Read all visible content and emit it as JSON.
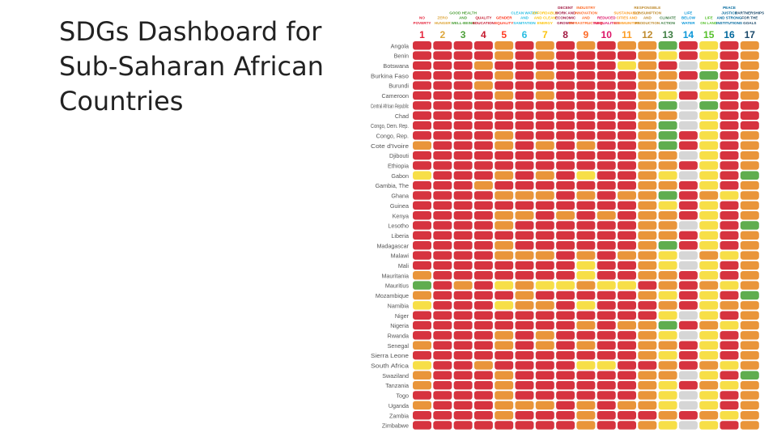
{
  "slide": {
    "title": "SDGs Dashboard for Sub-Saharan African Countries"
  },
  "palette": {
    "red": "#d6333f",
    "orange": "#e9953a",
    "yellow": "#f7df47",
    "green": "#5fad4f",
    "grey": "#d6d6d6"
  },
  "chart_data": {
    "type": "heatmap",
    "goals": [
      {
        "number": "1",
        "label": [
          "NO",
          "POVERTY"
        ],
        "color": "#e5243b"
      },
      {
        "number": "2",
        "label": [
          "ZERO",
          "HUNGER"
        ],
        "color": "#dda63a"
      },
      {
        "number": "3",
        "label": [
          "GOOD HEALTH",
          "AND",
          "WELL-BEING"
        ],
        "color": "#4c9f38"
      },
      {
        "number": "4",
        "label": [
          "QUALITY",
          "EDUCATION"
        ],
        "color": "#c5192d"
      },
      {
        "number": "5",
        "label": [
          "GENDER",
          "EQUALITY"
        ],
        "color": "#ff3a21"
      },
      {
        "number": "6",
        "label": [
          "CLEAN WATER",
          "AND",
          "SANITATION"
        ],
        "color": "#26bde2"
      },
      {
        "number": "7",
        "label": [
          "AFFORDABLE",
          "AND CLEAN",
          "ENERGY"
        ],
        "color": "#fcc30b"
      },
      {
        "number": "8",
        "label": [
          "DECENT",
          "WORK AND",
          "ECONOMIC",
          "GROWTH"
        ],
        "color": "#a21942"
      },
      {
        "number": "9",
        "label": [
          "INDUSTRY",
          "INNOVATION",
          "AND",
          "INFRASTRUCTURE"
        ],
        "color": "#fd6925"
      },
      {
        "number": "10",
        "label": [
          "REDUCED",
          "INEQUALITIES"
        ],
        "color": "#dd1367"
      },
      {
        "number": "11",
        "label": [
          "SUSTAINABLE",
          "CITIES AND",
          "COMMUNITIES"
        ],
        "color": "#fd9d24"
      },
      {
        "number": "12",
        "label": [
          "RESPONSIBLE",
          "CONSUMPTION",
          "AND",
          "PRODUCTION"
        ],
        "color": "#bf8b2e"
      },
      {
        "number": "13",
        "label": [
          "CLIMATE",
          "ACTION"
        ],
        "color": "#3f7e44"
      },
      {
        "number": "14",
        "label": [
          "LIFE",
          "BELOW",
          "WATER"
        ],
        "color": "#0a97d9"
      },
      {
        "number": "15",
        "label": [
          "LIFE",
          "ON LAND"
        ],
        "color": "#56c02b"
      },
      {
        "number": "16",
        "label": [
          "PEACE",
          "JUSTICE",
          "AND STRONG",
          "INSTITUTIONS"
        ],
        "color": "#00689d"
      },
      {
        "number": "17",
        "label": [
          "PARTNERSHIPS",
          "FOR THE",
          "GOALS"
        ],
        "color": "#19486a"
      }
    ],
    "legend_codes": {
      "R": "red",
      "O": "orange",
      "Y": "yellow",
      "G": "green",
      "N": "grey"
    },
    "countries": [
      "Angola",
      "Benin",
      "Botswana",
      "Burkina Faso",
      "Burundi",
      "Cameroon",
      "Central African Republic",
      "Chad",
      "Congo, Dem. Rep.",
      "Congo, Rep.",
      "Cote d'Ivoire",
      "Djibouti",
      "Ethiopia",
      "Gabon",
      "Gambia, The",
      "Ghana",
      "Guinea",
      "Kenya",
      "Lesotho",
      "Liberia",
      "Madagascar",
      "Malawi",
      "Mali",
      "Mauritania",
      "Mauritius",
      "Mozambique",
      "Namibia",
      "Niger",
      "Nigeria",
      "Rwanda",
      "Senegal",
      "Sierra Leone",
      "South Africa",
      "Swaziland",
      "Tanzania",
      "Togo",
      "Uganda",
      "Zambia",
      "Zimbabwe"
    ],
    "ratings": [
      "RRRROROROROOGRYRO",
      "RRRRORORRRROYRYRO",
      "RRRORRRRRRYORNYRO",
      "RRRRORORRRROORGRO",
      "RRRORRRRRRROONYRO",
      "RRRRORORRRROYRYRO",
      "RRRRRRRRRRROGNGRR",
      "RRRRRRRRRRROONYRR",
      "RRRRRRRRRRROGNYRR",
      "RRRRORRRRRROGRYRO",
      "ORRRORORORROGRYRO",
      "RRRRRRRRRRROONYRO",
      "RRRRRRRRRRROORYRO",
      "YRRRORORYRROYNYRG",
      "RRRORRRRRRROORYRO",
      "RRRROOOROROOGROYO",
      "RRRRRRRRRRROYRYRO",
      "RRRROOROROROORYRO",
      "RRRRORRRRRROONYRG",
      "RRRRRRRRRRROORYRO",
      "RRRRORRRRRROGRYRO",
      "RRRROOOROROOYNOYO",
      "RRRRRRRRYRROYNYRO",
      "ORRRRRRRYRROORYRO",
      "GRORYOYYOYYROROYO",
      "ORRRRORRRRROYRYRG",
      "YRRRYOORYRRRORYOO",
      "RRRRRRRRRRRRYNYRO",
      "RRRRRRRROROOGROYO",
      "RRRRORORRRROYNYRO",
      "ORRRORORORROORYRO",
      "RRRRRRRRRRROYRYRO",
      "YRRORRRRYYRROROYO",
      "ORRRORRRRRROONYRG",
      "ORRRORRRRRROYROYO",
      "RRRRORRRRRROYNYRO",
      "ORRROOOROROOYNYRO",
      "RRRRORRRORRROROYO",
      "RRRRRRRRORROYNYRO"
    ]
  }
}
